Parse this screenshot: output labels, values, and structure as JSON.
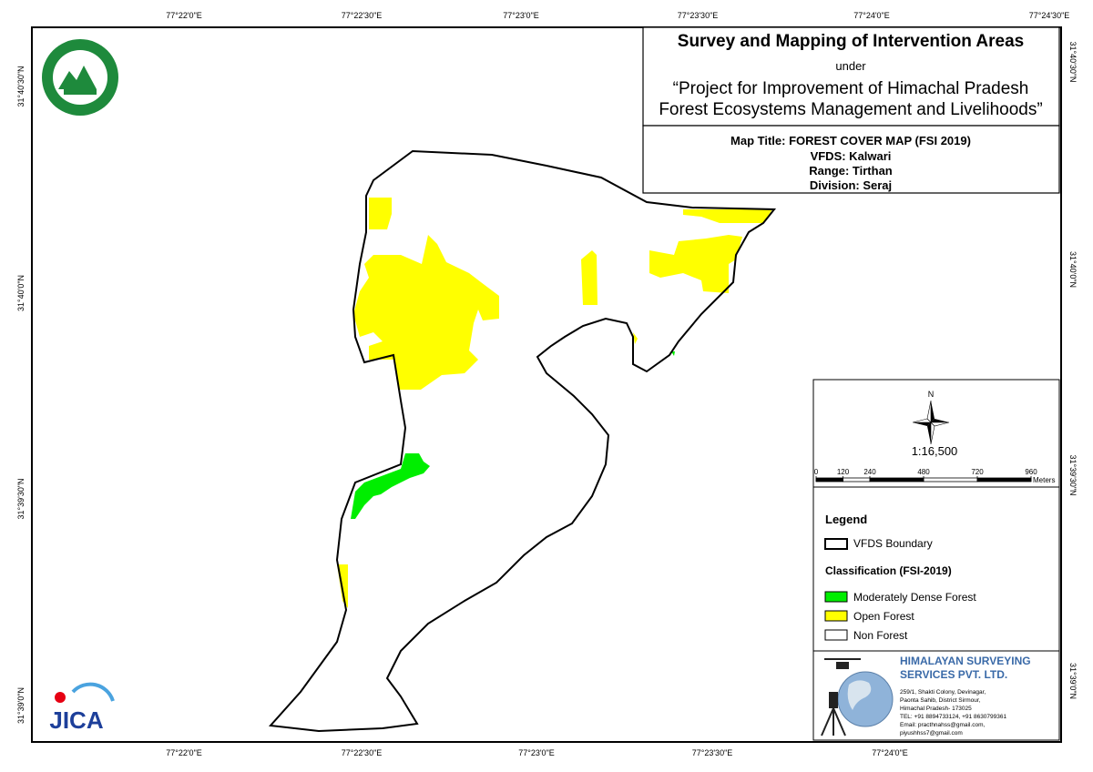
{
  "coordinates": {
    "top": [
      "77°22'0\"E",
      "77°22'30\"E",
      "77°23'0\"E",
      "77°23'30\"E",
      "77°24'0\"E",
      "77°24'30\"E"
    ],
    "bottom": [
      "77°22'0\"E",
      "77°22'30\"E",
      "77°23'0\"E",
      "77°23'30\"E",
      "77°24'0\"E"
    ],
    "left": [
      "31°40'30\"N",
      "31°40'0\"N",
      "31°39'30\"N",
      "31°39'0\"N"
    ],
    "right": [
      "31°40'30\"N",
      "31°40'0\"N",
      "31°39'30\"N",
      "31°39'0\"N"
    ]
  },
  "title_block": {
    "title": "Survey and Mapping of Intervention Areas",
    "subtitle": "under",
    "project_line1": "“Project for Improvement of Himachal Pradesh",
    "project_line2": "Forest Ecosystems Management and Livelihoods”"
  },
  "map_info": {
    "map_title": "Map Title: FOREST COVER MAP (FSI 2019)",
    "vfds": "VFDS: Kalwari",
    "range": "Range: Tirthan",
    "division": "Division: Seraj"
  },
  "north_arrow": "N",
  "scale": {
    "ratio": "1:16,500",
    "ticks": [
      0,
      120,
      240,
      480,
      720,
      960
    ],
    "unit": "Meters"
  },
  "legend": {
    "title": "Legend",
    "boundary": "VFDS Boundary",
    "classification_title": "Classification (FSI-2019)",
    "classes": [
      {
        "label": "Moderately Dense Forest",
        "color": "#00ee00"
      },
      {
        "label": "Open Forest",
        "color": "#ffff00"
      },
      {
        "label": "Non Forest",
        "color": "#ffffff"
      }
    ]
  },
  "company": {
    "name_line1": "HIMALAYAN SURVEYING",
    "name_line2": "SERVICES PVT. LTD.",
    "address": [
      "259/1, Shakti Colony, Devinagar,",
      "Paonta Sahib, District Sirmour,",
      "Himachal Pradesh- 173025",
      "TEL: +91 8894733124, +91 8630799361",
      "Email: practhnahss@gmail.com,",
      "piyushhss7@gmail.com"
    ]
  },
  "logos": {
    "jica": "JICA"
  }
}
